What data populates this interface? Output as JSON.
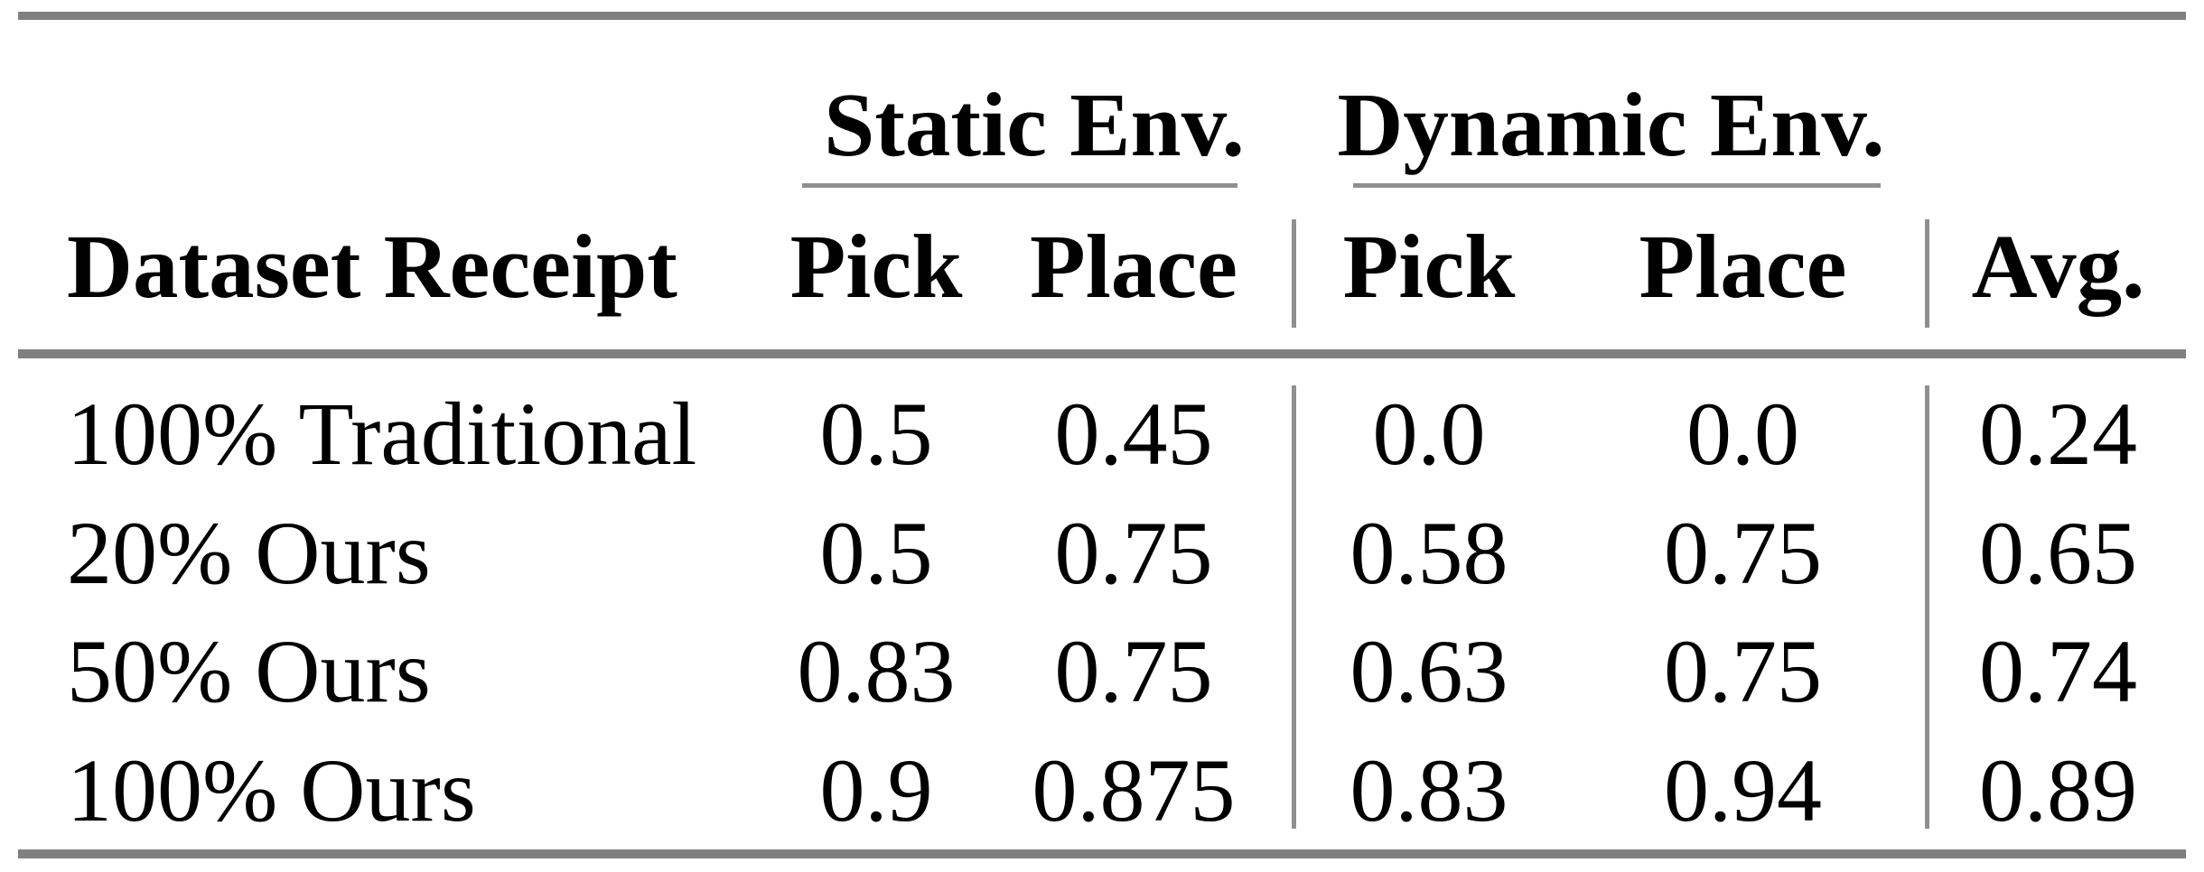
{
  "table": {
    "group_headers": {
      "static": "Static Env.",
      "dynamic": "Dynamic Env."
    },
    "column_headers": {
      "dataset": "Dataset Receipt",
      "static_pick": "Pick",
      "static_place": "Place",
      "dynamic_pick": "Pick",
      "dynamic_place": "Place",
      "avg": "Avg."
    },
    "rows": [
      {
        "label": "100% Traditional",
        "static_pick": "0.5",
        "static_place": "0.45",
        "dynamic_pick": "0.0",
        "dynamic_place": "0.0",
        "avg": "0.24"
      },
      {
        "label": "20% Ours",
        "static_pick": "0.5",
        "static_place": "0.75",
        "dynamic_pick": "0.58",
        "dynamic_place": "0.75",
        "avg": "0.65"
      },
      {
        "label": "50% Ours",
        "static_pick": "0.83",
        "static_place": "0.75",
        "dynamic_pick": "0.63",
        "dynamic_place": "0.75",
        "avg": "0.74"
      },
      {
        "label": "100% Ours",
        "static_pick": "0.9",
        "static_place": "0.875",
        "dynamic_pick": "0.83",
        "dynamic_place": "0.94",
        "avg": "0.89"
      }
    ]
  },
  "chart_data": {
    "type": "table",
    "title": "",
    "column_groups": [
      "Static Env.",
      "Dynamic Env."
    ],
    "columns": [
      "Dataset Receipt",
      "Static Env. Pick",
      "Static Env. Place",
      "Dynamic Env. Pick",
      "Dynamic Env. Place",
      "Avg."
    ],
    "rows": [
      [
        "100% Traditional",
        0.5,
        0.45,
        0.0,
        0.0,
        0.24
      ],
      [
        "20% Ours",
        0.5,
        0.75,
        0.58,
        0.75,
        0.65
      ],
      [
        "50% Ours",
        0.83,
        0.75,
        0.63,
        0.75,
        0.74
      ],
      [
        "100% Ours",
        0.9,
        0.875,
        0.83,
        0.94,
        0.89
      ]
    ]
  },
  "colors": {
    "background": "#ffffff",
    "text": "#000000",
    "rule_thick": "#808080",
    "rule_thin": "#8f8f8f"
  }
}
